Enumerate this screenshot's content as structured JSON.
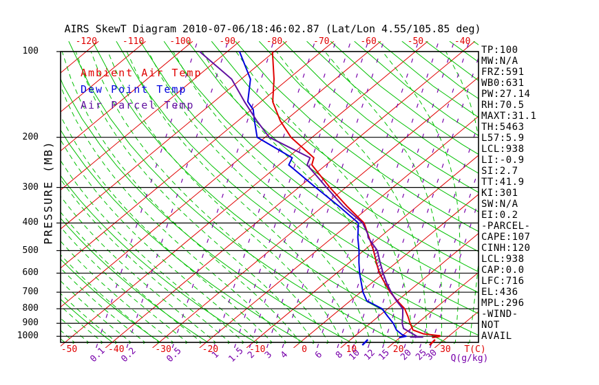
{
  "title": "AIRS SkewT Diagram 2010-07-06/18:46:02.87 (Lat/Lon 4.55/105.85 deg)",
  "colors": {
    "ambient": "#e00000",
    "dewpoint": "#0000dd",
    "parcel": "#6010a0",
    "isotherm": "#e00000",
    "adiabat_green": "#00c000",
    "mixing_purple": "#7700aa",
    "frame": "#000000"
  },
  "legend": [
    {
      "label": "Ambient Air Temp",
      "color": "#e00000"
    },
    {
      "label": "Dew Point Temp",
      "color": "#0000dd"
    },
    {
      "label": "Air Parcel Temp",
      "color": "#6010a0"
    }
  ],
  "side_panel": {
    "lines": [
      "TP:100",
      "MW:N/A",
      "FRZ:591",
      "WB0:631",
      "PW:27.14",
      "RH:70.5",
      "MAXT:31.1",
      "TH:5463",
      "L57:5.9",
      "LCL:938",
      "LI:-0.9",
      "SI:2.7",
      "TT:41.9",
      "KI:301",
      "SW:N/A",
      "EI:0.2",
      "-PARCEL-",
      "CAPE:107",
      "CINH:120",
      "LCL:938",
      "CAP:0.0",
      "LFC:716",
      "EL:436",
      "MPL:296",
      "-WIND-",
      "NOT",
      "AVAIL"
    ]
  },
  "chart_data": {
    "type": "line",
    "kind": "skewt-log-p",
    "y_axis": {
      "label": "PRESSURE (MB)",
      "ticks": [
        100,
        200,
        300,
        400,
        500,
        600,
        700,
        800,
        900,
        1000
      ],
      "scale": "log",
      "range": [
        100,
        1050
      ]
    },
    "x_axis_top": {
      "ticks": [
        -120,
        -110,
        -100,
        -90,
        -80,
        -70,
        -60,
        -50,
        -40
      ],
      "color": "#e00000"
    },
    "x_axis_bottom": {
      "ticks": [
        -50,
        -40,
        -30,
        -20,
        -10,
        0,
        10,
        20,
        30
      ],
      "label": "T(C)",
      "color": "#e00000"
    },
    "mixing_ratio_unit": "Q(g/kg)",
    "mixing_ratio_labels": [
      {
        "label": "0.1",
        "t": -43.0
      },
      {
        "label": "0.2",
        "t": -36.5
      },
      {
        "label": "0.5",
        "t": -26.8
      },
      {
        "label": "1",
        "t": -18.0
      },
      {
        "label": "1.5",
        "t": -13.6
      },
      {
        "label": "2",
        "t": -10.4
      },
      {
        "label": "3",
        "t": -6.7
      },
      {
        "label": "4",
        "t": -3.4
      },
      {
        "label": "6",
        "t": 4.0
      },
      {
        "label": "8",
        "t": 8.3
      },
      {
        "label": "10",
        "t": 11.6
      },
      {
        "label": "12",
        "t": 14.8
      },
      {
        "label": "15",
        "t": 17.9
      },
      {
        "label": "20",
        "t": 22.5
      },
      {
        "label": "25",
        "t": 25.8
      },
      {
        "label": "30",
        "t": 28.0
      }
    ],
    "grid": {
      "isotherms": {
        "min": -160,
        "max": 40,
        "step": 10
      },
      "dry_adiabats": {
        "theta_min": 220,
        "theta_max": 470,
        "step": 10
      },
      "moist_adiabats": {
        "t_start_min": -54,
        "t_start_max": 45,
        "step": 3
      },
      "mixing_ratio_slope": 0.33
    },
    "series": [
      {
        "name": "Ambient Air Temp",
        "color": "#e00000",
        "points": [
          [
            100,
            -80.4
          ],
          [
            125,
            -73
          ],
          [
            150,
            -67.5
          ],
          [
            175,
            -61
          ],
          [
            200,
            -54.5
          ],
          [
            236,
            -44.4
          ],
          [
            250,
            -43
          ],
          [
            300,
            -33.4
          ],
          [
            350,
            -24.8
          ],
          [
            400,
            -17.0
          ],
          [
            450,
            -12.2
          ],
          [
            500,
            -7.9
          ],
          [
            550,
            -4.3
          ],
          [
            600,
            -0.9
          ],
          [
            650,
            2.8
          ],
          [
            700,
            6.3
          ],
          [
            750,
            10.0
          ],
          [
            800,
            13.6
          ],
          [
            850,
            16.2
          ],
          [
            900,
            18.5
          ],
          [
            950,
            20.8
          ],
          [
            980,
            24.0
          ],
          [
            995,
            28.0
          ],
          [
            1003,
            28.1
          ],
          [
            1010,
            26.8
          ]
        ]
      },
      {
        "name": "Dew Point Temp",
        "color": "#0000dd",
        "points": [
          [
            100,
            -87.4
          ],
          [
            125,
            -78
          ],
          [
            150,
            -72.8
          ],
          [
            160,
            -69.6
          ],
          [
            175,
            -66.5
          ],
          [
            200,
            -61.7
          ],
          [
            236,
            -49
          ],
          [
            250,
            -47.9
          ],
          [
            300,
            -36.4
          ],
          [
            350,
            -26.5
          ],
          [
            400,
            -18.2
          ],
          [
            450,
            -14.6
          ],
          [
            500,
            -11.0
          ],
          [
            550,
            -8.0
          ],
          [
            600,
            -5.1
          ],
          [
            650,
            -2.2
          ],
          [
            700,
            0.5
          ],
          [
            750,
            3.5
          ],
          [
            800,
            8.8
          ],
          [
            850,
            11.9
          ],
          [
            900,
            14.9
          ],
          [
            950,
            17.3
          ],
          [
            985,
            19.6
          ],
          [
            1000,
            21.0
          ],
          [
            1010,
            19.8
          ]
        ]
      },
      {
        "name": "Air Parcel Temp",
        "color": "#6010a0",
        "points": [
          [
            100,
            -95.9
          ],
          [
            125,
            -82
          ],
          [
            150,
            -73.5
          ],
          [
            175,
            -66
          ],
          [
            200,
            -59.1
          ],
          [
            236,
            -45.2
          ],
          [
            250,
            -44
          ],
          [
            300,
            -34.1
          ],
          [
            350,
            -25.6
          ],
          [
            400,
            -17.3
          ],
          [
            436,
            -13.5
          ],
          [
            450,
            -12.4
          ],
          [
            500,
            -7.1
          ],
          [
            550,
            -3.5
          ],
          [
            600,
            -0.1
          ],
          [
            650,
            3.2
          ],
          [
            700,
            6.5
          ],
          [
            750,
            9.8
          ],
          [
            800,
            13.2
          ],
          [
            850,
            15.1
          ],
          [
            900,
            16.8
          ],
          [
            938,
            18.4
          ],
          [
            1000,
            23.3
          ],
          [
            1010,
            23.2
          ]
        ]
      }
    ],
    "hatch_region": {
      "p_from": 440,
      "p_to": 712,
      "between": [
        "Air Parcel Temp",
        "Ambient Air Temp"
      ],
      "color": "#6010a0"
    },
    "parcel_surface_segment": {
      "p": 1006,
      "t1": 22.0,
      "t2": 24.8
    },
    "surface_markers": [
      {
        "color": "#e00000",
        "t": 28.1
      },
      {
        "color": "#0000dd",
        "t": 13.8
      }
    ]
  }
}
